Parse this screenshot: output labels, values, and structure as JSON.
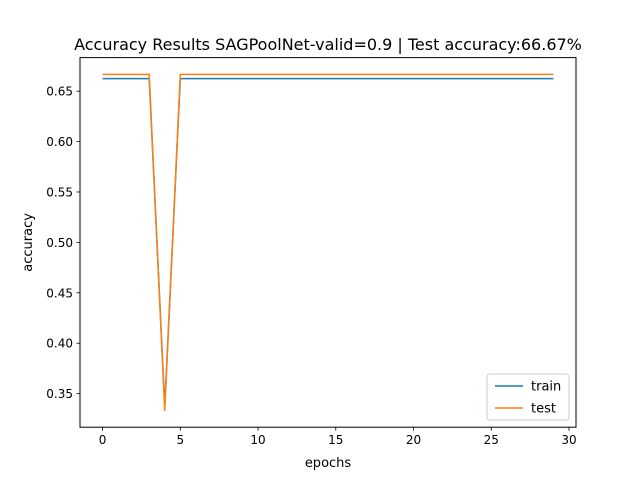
{
  "chart_data": {
    "type": "line",
    "title": "Accuracy Results SAGPoolNet-valid=0.9 | Test accuracy:66.67%",
    "xlabel": "epochs",
    "ylabel": "accuracy",
    "xlim": [
      -1.45,
      30.45
    ],
    "ylim": [
      0.3167,
      0.6833
    ],
    "xticks": [
      "0",
      "5",
      "10",
      "15",
      "20",
      "25",
      "30"
    ],
    "yticks": [
      "0.35",
      "0.40",
      "0.45",
      "0.50",
      "0.55",
      "0.60",
      "0.65"
    ],
    "grid": false,
    "legend_position": "lower right",
    "x": [
      0,
      1,
      2,
      3,
      4,
      5,
      6,
      7,
      8,
      9,
      10,
      11,
      12,
      13,
      14,
      15,
      16,
      17,
      18,
      19,
      20,
      21,
      22,
      23,
      24,
      25,
      26,
      27,
      28,
      29
    ],
    "series": [
      {
        "name": "train",
        "color": "#1f77b4",
        "values": [
          0.6625,
          0.6625,
          0.6625,
          0.6625,
          0.3375,
          0.6625,
          0.6625,
          0.6625,
          0.6625,
          0.6625,
          0.6625,
          0.6625,
          0.6625,
          0.6625,
          0.6625,
          0.6625,
          0.6625,
          0.6625,
          0.6625,
          0.6625,
          0.6625,
          0.6625,
          0.6625,
          0.6625,
          0.6625,
          0.6625,
          0.6625,
          0.6625,
          0.6625,
          0.6625
        ]
      },
      {
        "name": "test",
        "color": "#ff7f0e",
        "values": [
          0.6667,
          0.6667,
          0.6667,
          0.6667,
          0.3333,
          0.6667,
          0.6667,
          0.6667,
          0.6667,
          0.6667,
          0.6667,
          0.6667,
          0.6667,
          0.6667,
          0.6667,
          0.6667,
          0.6667,
          0.6667,
          0.6667,
          0.6667,
          0.6667,
          0.6667,
          0.6667,
          0.6667,
          0.6667,
          0.6667,
          0.6667,
          0.6667,
          0.6667,
          0.6667
        ]
      }
    ]
  }
}
